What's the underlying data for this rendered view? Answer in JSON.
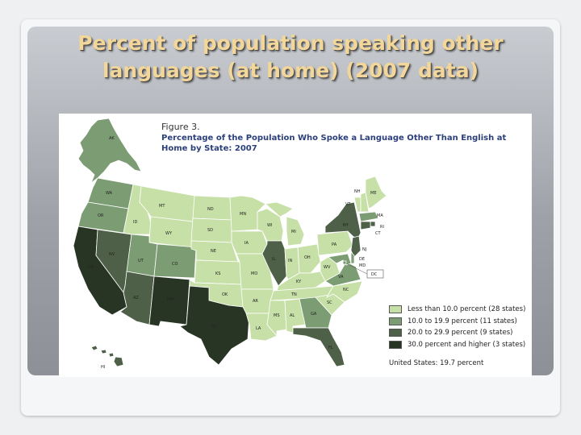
{
  "slide": {
    "title": "Percent of population speaking other languages (at home) (2007 data)"
  },
  "figure": {
    "number": "Figure 3.",
    "title": "Percentage of the Population Who Spoke a Language Other Than English at Home by State: 2007"
  },
  "colors": {
    "lt10": "#c7e0a7",
    "10to20": "#7c9c73",
    "20to30": "#4e6047",
    "30plus": "#293524"
  },
  "legend": [
    {
      "label": "Less than 10.0 percent (28 states)",
      "color": "#c7e0a7"
    },
    {
      "label": "10.0 to 19.9 percent (11 states)",
      "color": "#7c9c73"
    },
    {
      "label": "20.0 to 29.9 percent (9 states)",
      "color": "#4e6047"
    },
    {
      "label": "30.0 percent and higher (3 states)",
      "color": "#293524"
    }
  ],
  "us_total": "United States: 19.7 percent",
  "states": [
    {
      "abbr": "AK",
      "cls": "10to20"
    },
    {
      "abbr": "HI",
      "cls": "20to30"
    },
    {
      "abbr": "WA",
      "cls": "10to20"
    },
    {
      "abbr": "OR",
      "cls": "10to20"
    },
    {
      "abbr": "CA",
      "cls": "30plus"
    },
    {
      "abbr": "NV",
      "cls": "20to30"
    },
    {
      "abbr": "ID",
      "cls": "lt10"
    },
    {
      "abbr": "MT",
      "cls": "lt10"
    },
    {
      "abbr": "WY",
      "cls": "lt10"
    },
    {
      "abbr": "UT",
      "cls": "10to20"
    },
    {
      "abbr": "CO",
      "cls": "10to20"
    },
    {
      "abbr": "AZ",
      "cls": "20to30"
    },
    {
      "abbr": "NM",
      "cls": "30plus"
    },
    {
      "abbr": "ND",
      "cls": "lt10"
    },
    {
      "abbr": "SD",
      "cls": "lt10"
    },
    {
      "abbr": "NE",
      "cls": "lt10"
    },
    {
      "abbr": "KS",
      "cls": "lt10"
    },
    {
      "abbr": "OK",
      "cls": "lt10"
    },
    {
      "abbr": "TX",
      "cls": "30plus"
    },
    {
      "abbr": "MN",
      "cls": "lt10"
    },
    {
      "abbr": "IA",
      "cls": "lt10"
    },
    {
      "abbr": "MO",
      "cls": "lt10"
    },
    {
      "abbr": "AR",
      "cls": "lt10"
    },
    {
      "abbr": "LA",
      "cls": "lt10"
    },
    {
      "abbr": "WI",
      "cls": "lt10"
    },
    {
      "abbr": "IL",
      "cls": "20to30"
    },
    {
      "abbr": "MI",
      "cls": "lt10"
    },
    {
      "abbr": "IN",
      "cls": "lt10"
    },
    {
      "abbr": "OH",
      "cls": "lt10"
    },
    {
      "abbr": "KY",
      "cls": "lt10"
    },
    {
      "abbr": "TN",
      "cls": "lt10"
    },
    {
      "abbr": "MS",
      "cls": "lt10"
    },
    {
      "abbr": "AL",
      "cls": "lt10"
    },
    {
      "abbr": "GA",
      "cls": "10to20"
    },
    {
      "abbr": "FL",
      "cls": "20to30"
    },
    {
      "abbr": "SC",
      "cls": "lt10"
    },
    {
      "abbr": "NC",
      "cls": "lt10"
    },
    {
      "abbr": "VA",
      "cls": "10to20"
    },
    {
      "abbr": "WV",
      "cls": "lt10"
    },
    {
      "abbr": "PA",
      "cls": "lt10"
    },
    {
      "abbr": "NY",
      "cls": "20to30"
    },
    {
      "abbr": "VT",
      "cls": "lt10"
    },
    {
      "abbr": "NH",
      "cls": "lt10"
    },
    {
      "abbr": "ME",
      "cls": "lt10"
    },
    {
      "abbr": "MA",
      "cls": "10to20"
    },
    {
      "abbr": "RI",
      "cls": "20to30"
    },
    {
      "abbr": "CT",
      "cls": "20to30"
    },
    {
      "abbr": "NJ",
      "cls": "20to30"
    },
    {
      "abbr": "DE",
      "cls": "10to20"
    },
    {
      "abbr": "MD",
      "cls": "10to20"
    },
    {
      "abbr": "DC",
      "cls": "10to20"
    }
  ]
}
